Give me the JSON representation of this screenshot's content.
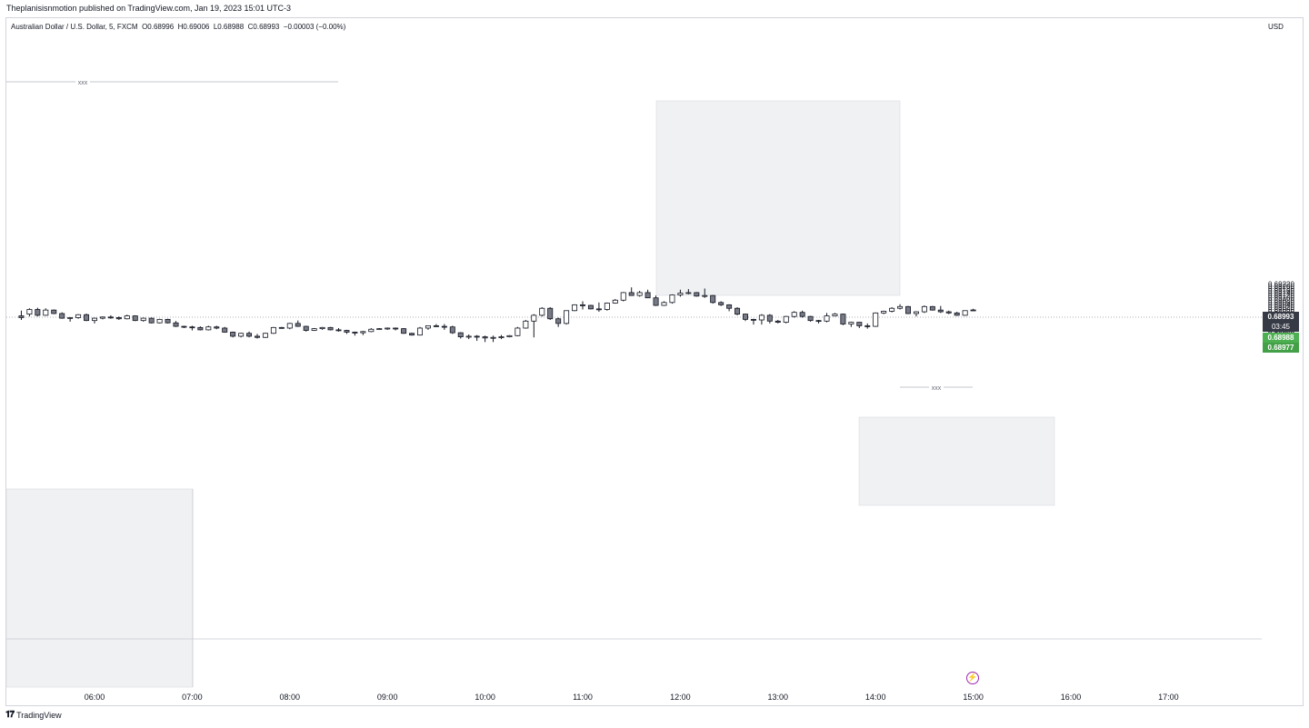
{
  "header": {
    "published": "Theplanisisnmotion published on TradingView.com, Jan 19, 2023 15:01 UTC-3"
  },
  "legend": {
    "symbol": "Australian Dollar / U.S. Dollar, 5, FXCM",
    "open": "O0.68996",
    "high": "H0.69006",
    "low": "L0.68988",
    "close": "C0.68993",
    "change": "−0.00003 (−0.00%)"
  },
  "price_scale": {
    "currency": "USD",
    "ticks": [
      "0.69220",
      "0.69200",
      "0.69180",
      "0.69160",
      "0.69140",
      "0.69120",
      "0.69100",
      "0.69080",
      "0.69060",
      "0.69040",
      "0.69020",
      "0.69000",
      "0.68980",
      "0.68960",
      "0.68940",
      "0.68920",
      "0.68900",
      "0.68880",
      "0.68860",
      "0.68840",
      "0.68820",
      "0.68800",
      "0.68780",
      "0.68760",
      "0.68740",
      "0.68720",
      "0.68700",
      "0.68680"
    ]
  },
  "time_scale": {
    "ticks": [
      "06:00",
      "07:00",
      "08:00",
      "09:00",
      "10:00",
      "11:00",
      "12:00",
      "13:00",
      "14:00",
      "15:00",
      "16:00",
      "17:00"
    ]
  },
  "price_tags": {
    "last_price": "0.68993",
    "countdown": "03:45",
    "tag_green_1": "0.68988",
    "tag_green_2": "0.68977"
  },
  "annotations": {
    "label_top_left": "xxx",
    "label_right": "xxx"
  },
  "footer": {
    "logo_mark": "𝟏𝟕",
    "brand": "TradingView"
  },
  "colors": {
    "bull_fill": "#ffffff",
    "bear_fill": "#787b86",
    "wick": "#131722",
    "zone_fill": "#f0f1f3",
    "last_price_bg": "#363a45",
    "green_tag": "#4caf50",
    "flash_icon": "#9c27b0"
  },
  "chart_data": {
    "type": "candlestick",
    "x_unit": "time (5-minute bars)",
    "y_unit": "price (USD)",
    "ylim": [
      0.6867,
      0.6923
    ],
    "grid": false,
    "candles": [
      [
        "05:15",
        0.68945,
        0.6899,
        0.6891,
        0.6893
      ],
      [
        "05:20",
        0.6896,
        0.6901,
        0.6894,
        0.69
      ],
      [
        "05:25",
        0.69,
        0.69015,
        0.6894,
        0.6895
      ],
      [
        "05:30",
        0.6895,
        0.6901,
        0.68945,
        0.68995
      ],
      [
        "05:35",
        0.68995,
        0.69,
        0.6896,
        0.68965
      ],
      [
        "05:40",
        0.68965,
        0.68975,
        0.6892,
        0.68925
      ],
      [
        "05:45",
        0.68925,
        0.68935,
        0.68895,
        0.6893
      ],
      [
        "05:50",
        0.6893,
        0.6896,
        0.6892,
        0.68955
      ],
      [
        "05:55",
        0.68955,
        0.68965,
        0.689,
        0.68905
      ],
      [
        "06:00",
        0.68905,
        0.6893,
        0.6888,
        0.68925
      ],
      [
        "06:05",
        0.68925,
        0.6894,
        0.68915,
        0.68935
      ],
      [
        "06:10",
        0.68935,
        0.6895,
        0.6892,
        0.6893
      ],
      [
        "06:15",
        0.6893,
        0.6894,
        0.6891,
        0.6892
      ],
      [
        "06:20",
        0.6892,
        0.68955,
        0.68915,
        0.68945
      ],
      [
        "06:25",
        0.68945,
        0.6895,
        0.689,
        0.68905
      ],
      [
        "06:30",
        0.68905,
        0.6893,
        0.68895,
        0.68925
      ],
      [
        "06:35",
        0.68925,
        0.6893,
        0.6888,
        0.68885
      ],
      [
        "06:40",
        0.68885,
        0.6892,
        0.6888,
        0.68915
      ],
      [
        "06:45",
        0.68915,
        0.6892,
        0.6888,
        0.68885
      ],
      [
        "06:50",
        0.68885,
        0.689,
        0.6885,
        0.68855
      ],
      [
        "06:55",
        0.68855,
        0.6886,
        0.6884,
        0.6885
      ],
      [
        "07:00",
        0.6885,
        0.6886,
        0.6882,
        0.68845
      ],
      [
        "07:05",
        0.68845,
        0.68855,
        0.6882,
        0.68825
      ],
      [
        "07:10",
        0.68825,
        0.6886,
        0.6882,
        0.6885
      ],
      [
        "07:15",
        0.6885,
        0.6886,
        0.6883,
        0.6884
      ],
      [
        "07:20",
        0.6884,
        0.6885,
        0.688,
        0.68805
      ],
      [
        "07:25",
        0.68805,
        0.6881,
        0.6876,
        0.6877
      ],
      [
        "07:30",
        0.6877,
        0.688,
        0.6876,
        0.68795
      ],
      [
        "07:35",
        0.68795,
        0.6881,
        0.6876,
        0.6877
      ],
      [
        "07:40",
        0.6877,
        0.6879,
        0.6875,
        0.6876
      ],
      [
        "07:45",
        0.6876,
        0.688,
        0.68755,
        0.68795
      ],
      [
        "07:50",
        0.68795,
        0.6885,
        0.6879,
        0.68845
      ],
      [
        "07:55",
        0.68845,
        0.6885,
        0.68835,
        0.6884
      ],
      [
        "08:00",
        0.6884,
        0.68885,
        0.6883,
        0.6888
      ],
      [
        "08:05",
        0.6888,
        0.68905,
        0.6885,
        0.68855
      ],
      [
        "08:10",
        0.68855,
        0.6886,
        0.6881,
        0.6882
      ],
      [
        "08:15",
        0.6882,
        0.6884,
        0.68815,
        0.68835
      ],
      [
        "08:20",
        0.68835,
        0.6885,
        0.68825,
        0.68845
      ],
      [
        "08:25",
        0.68845,
        0.6885,
        0.6882,
        0.68825
      ],
      [
        "08:30",
        0.68825,
        0.6884,
        0.6881,
        0.6882
      ],
      [
        "08:35",
        0.6882,
        0.68825,
        0.6879,
        0.68805
      ],
      [
        "08:40",
        0.68805,
        0.6881,
        0.68775,
        0.688
      ],
      [
        "08:45",
        0.688,
        0.68815,
        0.6878,
        0.6881
      ],
      [
        "08:50",
        0.6881,
        0.6884,
        0.68805,
        0.6883
      ],
      [
        "08:55",
        0.6883,
        0.6884,
        0.68825,
        0.68835
      ],
      [
        "09:00",
        0.68835,
        0.68845,
        0.68825,
        0.6884
      ],
      [
        "09:05",
        0.6884,
        0.68845,
        0.6882,
        0.68835
      ],
      [
        "09:10",
        0.68835,
        0.6884,
        0.6879,
        0.68795
      ],
      [
        "09:15",
        0.68795,
        0.688,
        0.68775,
        0.6878
      ],
      [
        "09:20",
        0.6878,
        0.6885,
        0.68775,
        0.6884
      ],
      [
        "09:25",
        0.6884,
        0.6886,
        0.68825,
        0.6886
      ],
      [
        "09:30",
        0.6886,
        0.68875,
        0.6885,
        0.68855
      ],
      [
        "09:35",
        0.68855,
        0.68875,
        0.68825,
        0.6885
      ],
      [
        "09:40",
        0.6885,
        0.6886,
        0.6879,
        0.688
      ],
      [
        "09:45",
        0.688,
        0.68805,
        0.6875,
        0.68765
      ],
      [
        "09:50",
        0.68765,
        0.68785,
        0.68745,
        0.6877
      ],
      [
        "09:55",
        0.6877,
        0.6878,
        0.6873,
        0.68765
      ],
      [
        "10:00",
        0.68765,
        0.68775,
        0.6872,
        0.68755
      ],
      [
        "10:05",
        0.68755,
        0.68775,
        0.6872,
        0.6876
      ],
      [
        "10:10",
        0.6876,
        0.6878,
        0.68745,
        0.68765
      ],
      [
        "10:15",
        0.68765,
        0.6878,
        0.6876,
        0.68775
      ],
      [
        "10:20",
        0.68775,
        0.6885,
        0.6877,
        0.6884
      ],
      [
        "10:25",
        0.6884,
        0.6891,
        0.68835,
        0.689
      ],
      [
        "10:30",
        0.689,
        0.6896,
        0.6876,
        0.6895
      ],
      [
        "10:35",
        0.6895,
        0.6902,
        0.6894,
        0.6901
      ],
      [
        "10:40",
        0.6901,
        0.6902,
        0.6891,
        0.6892
      ],
      [
        "10:45",
        0.6892,
        0.6893,
        0.6885,
        0.6888
      ],
      [
        "10:50",
        0.6888,
        0.6899,
        0.6887,
        0.6899
      ],
      [
        "10:55",
        0.6899,
        0.69045,
        0.68985,
        0.6904
      ],
      [
        "11:00",
        0.6904,
        0.6907,
        0.69,
        0.69035
      ],
      [
        "11:05",
        0.69035,
        0.6904,
        0.69,
        0.69005
      ],
      [
        "11:10",
        0.69005,
        0.6906,
        0.6898,
        0.69
      ],
      [
        "11:15",
        0.69,
        0.6906,
        0.6899,
        0.69055
      ],
      [
        "11:20",
        0.69055,
        0.6909,
        0.6905,
        0.6908
      ],
      [
        "11:25",
        0.6908,
        0.6915,
        0.6907,
        0.69145
      ],
      [
        "11:30",
        0.69145,
        0.6919,
        0.6912,
        0.6912
      ],
      [
        "11:35",
        0.6912,
        0.6916,
        0.6911,
        0.69145
      ],
      [
        "11:40",
        0.69145,
        0.6917,
        0.691,
        0.691
      ],
      [
        "11:45",
        0.691,
        0.6912,
        0.6903,
        0.69035
      ],
      [
        "11:50",
        0.69035,
        0.6907,
        0.6903,
        0.6906
      ],
      [
        "11:55",
        0.6906,
        0.6913,
        0.6905,
        0.69125
      ],
      [
        "12:00",
        0.69125,
        0.6917,
        0.6911,
        0.6914
      ],
      [
        "12:05",
        0.6914,
        0.69175,
        0.6913,
        0.69145
      ],
      [
        "12:10",
        0.69145,
        0.6915,
        0.6911,
        0.69115
      ],
      [
        "12:15",
        0.69115,
        0.6918,
        0.691,
        0.6912
      ],
      [
        "12:20",
        0.6912,
        0.69125,
        0.6905,
        0.6906
      ],
      [
        "12:25",
        0.6906,
        0.6907,
        0.6903,
        0.6904
      ],
      [
        "12:30",
        0.6904,
        0.69045,
        0.68985,
        0.6901
      ],
      [
        "12:35",
        0.6901,
        0.6902,
        0.6895,
        0.6896
      ],
      [
        "12:40",
        0.6896,
        0.68965,
        0.689,
        0.68915
      ],
      [
        "12:45",
        0.68915,
        0.6892,
        0.6887,
        0.6891
      ],
      [
        "12:50",
        0.6891,
        0.6896,
        0.6887,
        0.6895
      ],
      [
        "12:55",
        0.6895,
        0.6896,
        0.6888,
        0.689
      ],
      [
        "13:00",
        0.689,
        0.6891,
        0.6888,
        0.6889
      ],
      [
        "13:05",
        0.6889,
        0.68945,
        0.6888,
        0.6894
      ],
      [
        "13:10",
        0.6894,
        0.68985,
        0.6893,
        0.68975
      ],
      [
        "13:15",
        0.68975,
        0.6899,
        0.6893,
        0.6894
      ],
      [
        "13:20",
        0.6894,
        0.68945,
        0.68895,
        0.68905
      ],
      [
        "13:25",
        0.68905,
        0.6891,
        0.6888,
        0.689
      ],
      [
        "13:30",
        0.689,
        0.6897,
        0.6889,
        0.68945
      ],
      [
        "13:35",
        0.68945,
        0.6897,
        0.6894,
        0.6896
      ],
      [
        "13:40",
        0.6896,
        0.68965,
        0.68865,
        0.68875
      ],
      [
        "13:45",
        0.68875,
        0.68895,
        0.6885,
        0.6889
      ],
      [
        "13:50",
        0.6889,
        0.6889,
        0.6884,
        0.6886
      ],
      [
        "13:55",
        0.6886,
        0.6888,
        0.68835,
        0.68855
      ],
      [
        "14:00",
        0.68855,
        0.68975,
        0.6885,
        0.6897
      ],
      [
        "14:05",
        0.6897,
        0.6899,
        0.6896,
        0.68985
      ],
      [
        "14:10",
        0.68985,
        0.6902,
        0.68975,
        0.6901
      ],
      [
        "14:15",
        0.6901,
        0.69045,
        0.69,
        0.69025
      ],
      [
        "14:20",
        0.69025,
        0.6903,
        0.6896,
        0.68965
      ],
      [
        "14:25",
        0.68965,
        0.68985,
        0.6894,
        0.6898
      ],
      [
        "14:30",
        0.6898,
        0.69035,
        0.6897,
        0.69025
      ],
      [
        "14:35",
        0.69025,
        0.6903,
        0.6899,
        0.68995
      ],
      [
        "14:40",
        0.68995,
        0.6903,
        0.6897,
        0.6898
      ],
      [
        "14:45",
        0.6898,
        0.6899,
        0.6896,
        0.6897
      ],
      [
        "14:50",
        0.6897,
        0.6898,
        0.68945,
        0.6895
      ],
      [
        "14:55",
        0.6895,
        0.68985,
        0.68945,
        0.6899
      ],
      [
        "15:00",
        0.68996,
        0.69006,
        0.68988,
        0.68993
      ]
    ]
  }
}
